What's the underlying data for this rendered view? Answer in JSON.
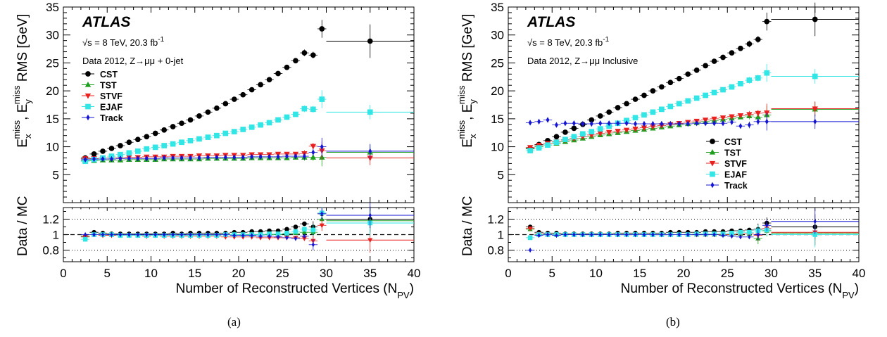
{
  "chart_data": [
    {
      "type": "scatter",
      "panel_label": "(a)",
      "experiment": "ATLAS",
      "energy_line": "√s = 8 TeV, 20.3 fb",
      "energy_sup": "-1",
      "selection": "Data 2012, Z→μμ + 0-jet",
      "ylabel": "E_x^miss, E_y^miss RMS [GeV]",
      "ratio_ylabel": "Data / MC",
      "xlabel": "Number of Reconstructed Vertices (N_PV)",
      "xlim": [
        0,
        40
      ],
      "ylim": [
        0,
        35
      ],
      "ratio_ylim": [
        0.65,
        1.35
      ],
      "xticks": [
        "0",
        "5",
        "10",
        "15",
        "20",
        "25",
        "30",
        "35",
        "40"
      ],
      "yticks": [
        "5",
        "10",
        "15",
        "20",
        "25",
        "30",
        "35"
      ],
      "ratio_yticks": [
        "0.8",
        "1",
        "1.2"
      ],
      "legend_position": "upper-left",
      "x": [
        2.5,
        3.5,
        4.5,
        5.5,
        6.5,
        7.5,
        8.5,
        9.5,
        10.5,
        11.5,
        12.5,
        13.5,
        14.5,
        15.5,
        16.5,
        17.5,
        18.5,
        19.5,
        20.5,
        21.5,
        22.5,
        23.5,
        24.5,
        25.5,
        26.5,
        27.5,
        28.5,
        29.5
      ],
      "overflow_bin": [
        30,
        40
      ],
      "overflow_x": 35,
      "series": [
        {
          "name": "CST",
          "color": "#000000",
          "marker": "circle",
          "values": [
            8.0,
            8.7,
            9.2,
            9.7,
            10.2,
            10.8,
            11.3,
            11.8,
            12.4,
            13.0,
            13.6,
            14.2,
            14.8,
            15.5,
            16.2,
            16.9,
            17.7,
            18.5,
            19.3,
            20.2,
            21.1,
            22.0,
            23.1,
            24.2,
            25.4,
            26.8,
            26.4,
            31.1
          ],
          "overflow": 28.9,
          "ratio": [
            0.98,
            1.03,
            1.02,
            1.01,
            1.01,
            1.01,
            1.01,
            1.01,
            1.01,
            1.01,
            1.02,
            1.01,
            1.02,
            1.02,
            1.02,
            1.02,
            1.02,
            1.03,
            1.03,
            1.04,
            1.04,
            1.05,
            1.05,
            1.07,
            1.1,
            1.14,
            1.1,
            1.27
          ],
          "ratio_overflow": 1.2
        },
        {
          "name": "TST",
          "color": "#1e9e1e",
          "marker": "triangle-up",
          "values": [
            7.5,
            7.5,
            7.6,
            7.6,
            7.6,
            7.7,
            7.7,
            7.7,
            7.7,
            7.8,
            7.8,
            7.8,
            7.8,
            7.8,
            7.9,
            7.9,
            7.9,
            7.9,
            7.9,
            8.0,
            8.0,
            8.0,
            8.0,
            8.0,
            8.1,
            8.1,
            8.1,
            8.1
          ],
          "overflow": 9.0,
          "ratio": [
            0.98,
            1.0,
            1.0,
            1.0,
            1.0,
            1.0,
            1.0,
            1.0,
            1.0,
            1.0,
            1.0,
            1.0,
            1.0,
            1.0,
            1.0,
            1.0,
            1.0,
            1.0,
            1.0,
            1.0,
            1.0,
            1.0,
            1.0,
            1.01,
            1.02,
            1.03,
            1.03,
            1.2
          ],
          "ratio_overflow": 1.18
        },
        {
          "name": "STVF",
          "color": "#e8201e",
          "marker": "triangle-down",
          "values": [
            7.9,
            7.9,
            8.0,
            8.0,
            8.0,
            8.1,
            8.1,
            8.2,
            8.2,
            8.2,
            8.3,
            8.3,
            8.3,
            8.4,
            8.4,
            8.4,
            8.5,
            8.5,
            8.5,
            8.6,
            8.6,
            8.6,
            8.7,
            8.7,
            8.7,
            8.8,
            10.1,
            9.3
          ],
          "overflow": 8.0,
          "ratio": [
            0.97,
            1.0,
            0.99,
            0.99,
            0.99,
            0.99,
            0.99,
            0.98,
            0.99,
            0.98,
            0.98,
            0.98,
            0.98,
            0.98,
            0.98,
            0.98,
            0.97,
            0.97,
            0.97,
            0.97,
            0.96,
            0.96,
            0.96,
            0.96,
            0.96,
            0.95,
            0.92,
            1.12
          ],
          "ratio_overflow": 0.93
        },
        {
          "name": "EJAF",
          "color": "#33e6e6",
          "marker": "square",
          "values": [
            7.4,
            7.7,
            8.0,
            8.3,
            8.6,
            8.9,
            9.2,
            9.6,
            9.9,
            10.2,
            10.5,
            10.8,
            11.1,
            11.4,
            11.7,
            12.0,
            12.4,
            12.7,
            13.1,
            13.5,
            13.9,
            14.3,
            14.8,
            15.3,
            15.8,
            16.8,
            16.7,
            18.5
          ],
          "overflow": 16.2,
          "ratio": [
            0.94,
            1.0,
            1.0,
            1.0,
            0.99,
            0.99,
            0.99,
            0.99,
            0.99,
            0.99,
            0.99,
            0.99,
            0.99,
            0.99,
            0.99,
            0.99,
            1.0,
            1.0,
            1.0,
            1.0,
            1.0,
            1.01,
            1.01,
            1.02,
            1.04,
            1.07,
            1.06,
            1.28
          ],
          "ratio_overflow": 1.15
        },
        {
          "name": "Track",
          "color": "#1414d2",
          "marker": "diamond",
          "values": [
            7.7,
            7.8,
            7.8,
            7.8,
            7.9,
            7.9,
            7.9,
            7.9,
            7.9,
            8.0,
            8.0,
            8.0,
            8.0,
            8.0,
            8.1,
            8.1,
            8.1,
            8.1,
            8.1,
            8.2,
            8.2,
            8.2,
            8.2,
            8.3,
            8.3,
            8.3,
            9.0,
            10.0
          ],
          "overflow": 9.2,
          "ratio": [
            1.0,
            1.0,
            1.0,
            1.0,
            1.0,
            1.0,
            1.0,
            1.0,
            1.0,
            1.0,
            1.0,
            1.0,
            1.0,
            1.0,
            1.0,
            1.0,
            1.0,
            0.99,
            0.99,
            0.99,
            0.98,
            0.98,
            0.97,
            0.96,
            0.95,
            0.98,
            0.87,
            1.27
          ],
          "ratio_overflow": 1.25
        }
      ]
    },
    {
      "type": "scatter",
      "panel_label": "(b)",
      "experiment": "ATLAS",
      "energy_line": "√s = 8 TeV, 20.3 fb",
      "energy_sup": "-1",
      "selection": "Data 2012, Z→μμ Inclusive",
      "ylabel": "E_x^miss, E_y^miss RMS [GeV]",
      "ratio_ylabel": "Data / MC",
      "xlabel": "Number of Reconstructed Vertices (N_PV)",
      "xlim": [
        0,
        40
      ],
      "ylim": [
        0,
        35
      ],
      "ratio_ylim": [
        0.65,
        1.35
      ],
      "xticks": [
        "0",
        "5",
        "10",
        "15",
        "20",
        "25",
        "30",
        "35",
        "40"
      ],
      "yticks": [
        "5",
        "10",
        "15",
        "20",
        "25",
        "30",
        "35"
      ],
      "ratio_yticks": [
        "0.8",
        "1",
        "1.2"
      ],
      "legend_position": "center-right",
      "x": [
        2.5,
        3.5,
        4.5,
        5.5,
        6.5,
        7.5,
        8.5,
        9.5,
        10.5,
        11.5,
        12.5,
        13.5,
        14.5,
        15.5,
        16.5,
        17.5,
        18.5,
        19.5,
        20.5,
        21.5,
        22.5,
        23.5,
        24.5,
        25.5,
        26.5,
        27.5,
        28.5,
        29.5
      ],
      "overflow_bin": [
        30,
        40
      ],
      "overflow_x": 35,
      "series": [
        {
          "name": "CST",
          "color": "#000000",
          "marker": "circle",
          "values": [
            9.7,
            10.4,
            11.1,
            11.8,
            12.6,
            13.3,
            14.0,
            14.8,
            15.5,
            16.2,
            17.0,
            17.7,
            18.5,
            19.2,
            20.0,
            20.7,
            21.5,
            22.2,
            23.0,
            23.7,
            24.5,
            25.3,
            26.0,
            26.8,
            27.6,
            28.4,
            29.2,
            32.4
          ],
          "overflow": 32.8,
          "ratio": [
            1.1,
            1.03,
            1.02,
            1.02,
            1.01,
            1.01,
            1.01,
            1.01,
            1.01,
            1.01,
            1.02,
            1.02,
            1.02,
            1.02,
            1.02,
            1.02,
            1.03,
            1.03,
            1.03,
            1.03,
            1.04,
            1.04,
            1.04,
            1.05,
            1.05,
            1.06,
            1.07,
            1.15
          ],
          "ratio_overflow": 1.1
        },
        {
          "name": "TST",
          "color": "#1e9e1e",
          "marker": "triangle-up",
          "values": [
            9.6,
            10.0,
            10.3,
            10.6,
            10.9,
            11.2,
            11.5,
            11.8,
            12.1,
            12.3,
            12.5,
            12.7,
            12.9,
            13.1,
            13.3,
            13.5,
            13.7,
            13.9,
            14.1,
            14.3,
            14.5,
            14.7,
            14.9,
            15.1,
            15.3,
            15.5,
            15.3,
            15.7
          ],
          "overflow": 16.7,
          "ratio": [
            1.07,
            1.0,
            1.0,
            1.0,
            1.0,
            1.0,
            1.0,
            1.0,
            1.0,
            1.0,
            1.0,
            1.0,
            1.0,
            1.0,
            1.0,
            1.0,
            1.0,
            1.0,
            1.0,
            1.0,
            1.0,
            1.0,
            1.0,
            1.0,
            1.01,
            1.01,
            0.95,
            1.05
          ],
          "ratio_overflow": 1.02
        },
        {
          "name": "STVF",
          "color": "#e8201e",
          "marker": "triangle-down",
          "values": [
            9.9,
            10.3,
            10.6,
            10.9,
            11.2,
            11.5,
            11.8,
            12.1,
            12.4,
            12.6,
            12.8,
            13.0,
            13.2,
            13.4,
            13.6,
            13.8,
            14.0,
            14.2,
            14.4,
            14.6,
            14.8,
            15.0,
            15.2,
            15.4,
            15.6,
            15.8,
            16.0,
            16.1
          ],
          "overflow": 16.8,
          "ratio": [
            1.08,
            1.01,
            1.0,
            1.0,
            1.0,
            1.0,
            1.0,
            1.0,
            1.0,
            1.0,
            1.0,
            1.0,
            1.0,
            1.0,
            1.0,
            1.0,
            1.0,
            1.0,
            1.0,
            1.0,
            1.0,
            1.0,
            1.0,
            1.0,
            1.01,
            1.01,
            0.99,
            1.08
          ],
          "ratio_overflow": 1.03
        },
        {
          "name": "EJAF",
          "color": "#33e6e6",
          "marker": "square",
          "values": [
            9.3,
            9.8,
            10.3,
            10.8,
            11.3,
            11.8,
            12.3,
            12.7,
            13.2,
            13.7,
            14.2,
            14.7,
            15.2,
            15.7,
            16.2,
            16.7,
            17.2,
            17.7,
            18.2,
            18.7,
            19.2,
            19.7,
            20.2,
            20.7,
            21.3,
            21.9,
            22.3,
            23.2
          ],
          "overflow": 22.6,
          "ratio": [
            0.96,
            1.0,
            1.0,
            1.0,
            1.0,
            1.0,
            1.0,
            1.0,
            1.0,
            1.0,
            1.0,
            1.0,
            1.0,
            1.0,
            1.0,
            1.0,
            1.0,
            1.0,
            1.0,
            1.01,
            1.01,
            1.01,
            1.01,
            1.02,
            1.03,
            1.03,
            1.05,
            1.06
          ],
          "ratio_overflow": 1.0
        },
        {
          "name": "Track",
          "color": "#1414d2",
          "marker": "diamond",
          "values": [
            14.3,
            14.5,
            14.8,
            13.9,
            14.2,
            14.2,
            14.1,
            14.1,
            14.2,
            14.2,
            14.2,
            14.2,
            14.1,
            14.1,
            14.1,
            14.1,
            14.1,
            14.1,
            14.1,
            14.2,
            14.2,
            14.2,
            14.2,
            14.4,
            13.7,
            13.9,
            14.5,
            14.5
          ],
          "overflow": 14.5,
          "ratio": [
            0.8,
            0.99,
            1.0,
            0.99,
            1.0,
            1.0,
            1.0,
            1.0,
            1.0,
            1.0,
            1.0,
            1.0,
            1.0,
            1.0,
            1.0,
            1.0,
            1.0,
            1.0,
            1.0,
            1.0,
            1.0,
            1.0,
            0.99,
            0.98,
            0.97,
            0.97,
            1.0,
            1.12
          ],
          "ratio_overflow": 1.17
        }
      ]
    }
  ]
}
